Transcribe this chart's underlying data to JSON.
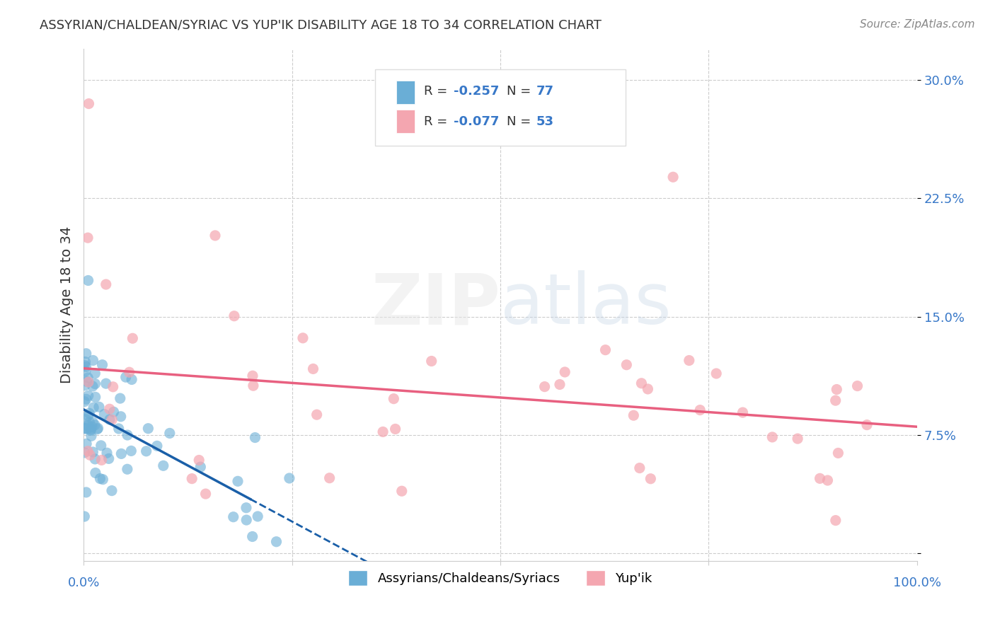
{
  "title": "ASSYRIAN/CHALDEAN/SYRIAC VS YUP'IK DISABILITY AGE 18 TO 34 CORRELATION CHART",
  "source": "Source: ZipAtlas.com",
  "ylabel": "Disability Age 18 to 34",
  "ytick_positions": [
    0.0,
    0.075,
    0.15,
    0.225,
    0.3
  ],
  "ytick_labels": [
    "",
    "7.5%",
    "15.0%",
    "22.5%",
    "30.0%"
  ],
  "xlim": [
    0.0,
    1.0
  ],
  "ylim": [
    -0.005,
    0.32
  ],
  "legend_label1": "Assyrians/Chaldeans/Syriacs",
  "legend_label2": "Yup'ik",
  "R1": -0.257,
  "N1": 77,
  "R2": -0.077,
  "N2": 53,
  "blue_color": "#6aaed6",
  "pink_color": "#f4a6b0",
  "trend_blue": "#1a5fa8",
  "trend_pink": "#e86080"
}
